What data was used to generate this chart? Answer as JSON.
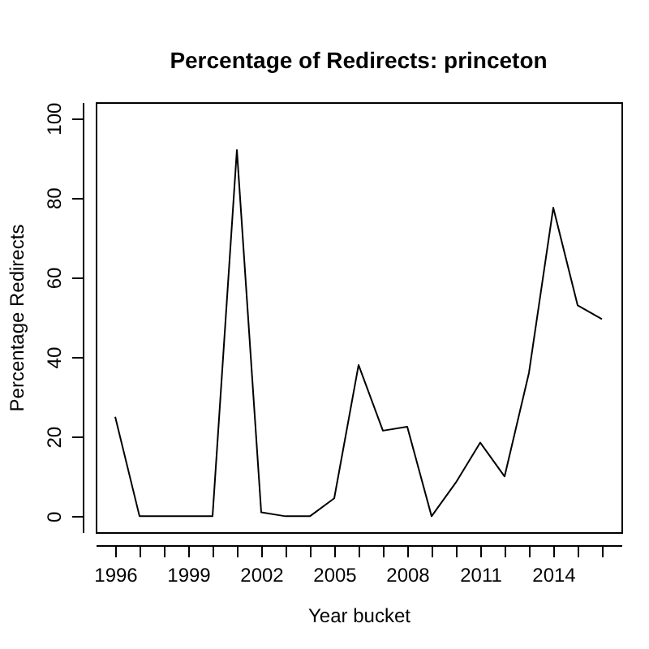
{
  "chart_data": {
    "type": "line",
    "title": "Percentage of Redirects: princeton",
    "xlabel": "Year bucket",
    "ylabel": "Percentage Redirects",
    "x": [
      1996,
      1997,
      1998,
      1999,
      2000,
      2001,
      2002,
      2003,
      2004,
      2005,
      2006,
      2007,
      2008,
      2009,
      2010,
      2011,
      2012,
      2013,
      2014,
      2015,
      2016
    ],
    "series": [
      {
        "color": "#000000",
        "values": [
          25,
          0,
          0,
          0,
          0,
          92,
          1,
          0,
          0,
          4.5,
          38,
          21.5,
          22.5,
          0,
          8.5,
          18.5,
          10,
          36,
          77.5,
          53,
          49.5
        ]
      }
    ],
    "xlim": [
      1995.2,
      2016.8
    ],
    "ylim": [
      -4,
      104
    ],
    "xticks": [
      1996,
      {
        "value": 1997,
        "label": null
      },
      {
        "value": 1998,
        "label": null
      },
      1999,
      {
        "value": 2000,
        "label": null
      },
      {
        "value": 2001,
        "label": null
      },
      2002,
      {
        "value": 2003,
        "label": null
      },
      {
        "value": 2004,
        "label": null
      },
      2005,
      {
        "value": 2006,
        "label": null
      },
      {
        "value": 2007,
        "label": null
      },
      2008,
      {
        "value": 2009,
        "label": null
      },
      {
        "value": 2010,
        "label": null
      },
      2011,
      {
        "value": 2012,
        "label": null
      },
      {
        "value": 2013,
        "label": null
      },
      2014,
      {
        "value": 2015,
        "label": null
      },
      {
        "value": 2016,
        "label": null
      }
    ],
    "yticks": [
      0,
      20,
      40,
      60,
      80,
      100
    ],
    "grid": false,
    "marker": "none",
    "line_style": "solid"
  }
}
